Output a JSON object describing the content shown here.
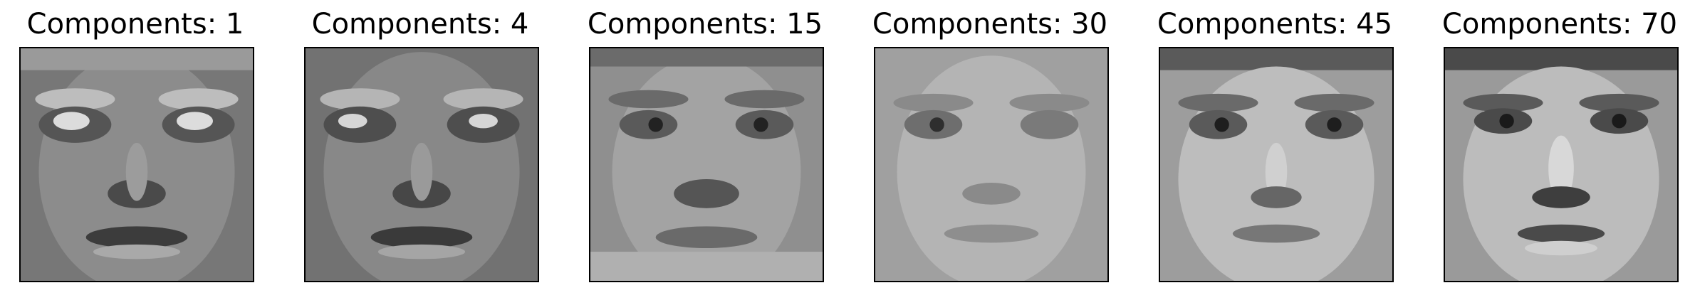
{
  "figure": {
    "panels": [
      {
        "title": "Components: 1",
        "components": 1
      },
      {
        "title": "Components: 4",
        "components": 4
      },
      {
        "title": "Components: 15",
        "components": 15
      },
      {
        "title": "Components: 30",
        "components": 30
      },
      {
        "title": "Components: 45",
        "components": 45
      },
      {
        "title": "Components: 70",
        "components": 70
      }
    ]
  }
}
